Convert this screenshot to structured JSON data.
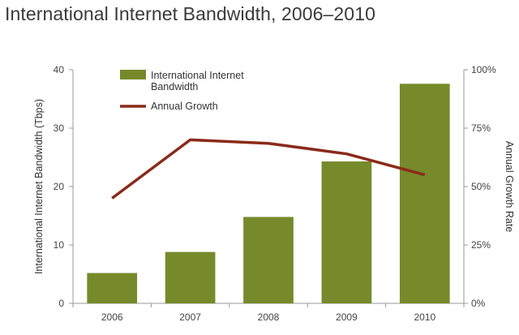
{
  "chart_data": {
    "type": "bar",
    "title": "International Internet Bandwidth, 2006–2010",
    "categories": [
      "2006",
      "2007",
      "2008",
      "2009",
      "2010"
    ],
    "series": [
      {
        "name": "International Internet Bandwidth",
        "legend_lines": [
          "International Internet",
          "Bandwidth"
        ],
        "type": "bar",
        "axis": "left",
        "color": "#768a2b",
        "values": [
          5.2,
          8.8,
          14.8,
          24.3,
          37.6
        ]
      },
      {
        "name": "Annual Growth",
        "type": "line",
        "axis": "right",
        "color": "#8b2a1a",
        "values": [
          0.45,
          0.7,
          0.685,
          0.64,
          0.55
        ]
      }
    ],
    "ylabel": "International Internet Bandwidth (Tbps)",
    "ylim": [
      0,
      40
    ],
    "y_ticks": [
      0,
      10,
      20,
      30,
      40
    ],
    "y2label": "Annual Growth Rate",
    "y2lim": [
      0,
      1
    ],
    "y2_ticks": [
      0,
      0.25,
      0.5,
      0.75,
      1
    ],
    "y2_tick_labels": [
      "0%",
      "25%",
      "50%",
      "75%",
      "100%"
    ],
    "grid": false,
    "legend_position": "top-left"
  }
}
